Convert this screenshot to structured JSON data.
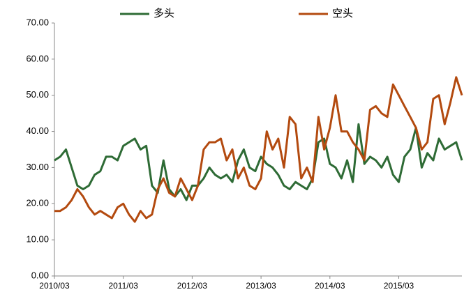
{
  "chart_data": {
    "type": "line",
    "categories": [
      "2010/03",
      null,
      null,
      null,
      null,
      null,
      null,
      null,
      null,
      null,
      null,
      null,
      "2011/03",
      null,
      null,
      null,
      null,
      null,
      null,
      null,
      null,
      null,
      null,
      null,
      "2012/03",
      null,
      null,
      null,
      null,
      null,
      null,
      null,
      null,
      null,
      null,
      null,
      "2013/03",
      null,
      null,
      null,
      null,
      null,
      null,
      null,
      null,
      null,
      null,
      null,
      "2014/03",
      null,
      null,
      null,
      null,
      null,
      null,
      null,
      null,
      null,
      null,
      null,
      "2015/03",
      null,
      null,
      null,
      null,
      null,
      null,
      null,
      null,
      null,
      null,
      null
    ],
    "series": [
      {
        "name": "多头",
        "color": "#2e6b35",
        "values": [
          32,
          33,
          35,
          30,
          25,
          24,
          25,
          28,
          29,
          33,
          33,
          32,
          36,
          37,
          38,
          35,
          36,
          25,
          23,
          32,
          24,
          22,
          24,
          21,
          25,
          25,
          27,
          30,
          28,
          27,
          28,
          26,
          32,
          35,
          30,
          29,
          33,
          31,
          30,
          28,
          25,
          24,
          26,
          25,
          24,
          27,
          37,
          38,
          31,
          30,
          27,
          32,
          26,
          42,
          31,
          33,
          32,
          30,
          33,
          28,
          26,
          33,
          35,
          41,
          30,
          34,
          32,
          38,
          35,
          36,
          37,
          32
        ]
      },
      {
        "name": "空头",
        "color": "#b34a0f",
        "values": [
          18,
          18,
          19,
          21,
          24,
          22,
          19,
          17,
          18,
          17,
          16,
          19,
          20,
          17,
          15,
          18,
          16,
          17,
          24,
          27,
          23,
          22,
          27,
          24,
          21,
          25,
          35,
          37,
          37,
          38,
          32,
          35,
          27,
          30,
          25,
          24,
          27,
          40,
          35,
          38,
          30,
          44,
          42,
          27,
          30,
          26,
          44,
          35,
          41,
          50,
          40,
          40,
          37,
          35,
          32,
          46,
          47,
          45,
          44,
          53,
          50,
          47,
          44,
          41,
          35,
          37,
          49,
          50,
          42,
          48,
          55,
          50
        ]
      }
    ],
    "ylim": [
      0,
      70
    ],
    "yticks": [
      {
        "value": 0,
        "label": "0.00"
      },
      {
        "value": 10,
        "label": "10.00"
      },
      {
        "value": 20,
        "label": "20.00"
      },
      {
        "value": 30,
        "label": "30.00"
      },
      {
        "value": 40,
        "label": "40.00"
      },
      {
        "value": 50,
        "label": "50.00"
      },
      {
        "value": 60,
        "label": "60.00"
      },
      {
        "value": 70,
        "label": "70.00"
      }
    ],
    "legend": "top"
  }
}
